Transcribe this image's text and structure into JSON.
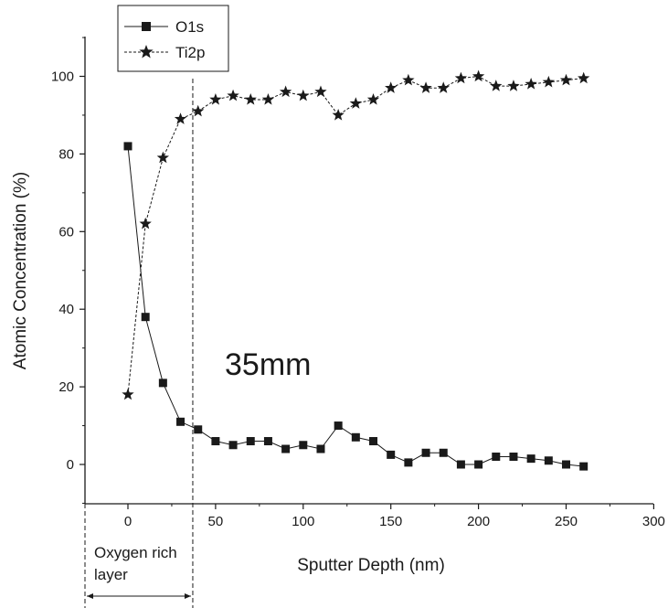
{
  "chart_data": {
    "type": "scatter",
    "xlabel": "Sputter Depth (nm)",
    "ylabel": "Atomic Concentration (%)",
    "xlim": [
      -25,
      300
    ],
    "ylim": [
      -10,
      110
    ],
    "x_ticks": [
      0,
      50,
      100,
      150,
      200,
      250,
      300
    ],
    "y_ticks": [
      0,
      20,
      40,
      60,
      80,
      100
    ],
    "grid": false,
    "legend_position": "top-left",
    "series": [
      {
        "name": "O1s",
        "marker": "square",
        "line_style": "solid",
        "color": "#1a1a1a",
        "x": [
          0,
          10,
          20,
          30,
          40,
          50,
          60,
          70,
          80,
          90,
          100,
          110,
          120,
          130,
          140,
          150,
          160,
          170,
          180,
          190,
          200,
          210,
          220,
          230,
          240,
          250,
          260
        ],
        "y": [
          82,
          38,
          21,
          11,
          9,
          6,
          5,
          6,
          6,
          4,
          5,
          4,
          10,
          7,
          6,
          2.5,
          0.5,
          3,
          3,
          0,
          0,
          2,
          2,
          1.5,
          1,
          0,
          -0.5
        ]
      },
      {
        "name": "Ti2p",
        "marker": "star",
        "line_style": "dashed",
        "color": "#1a1a1a",
        "x": [
          0,
          10,
          20,
          30,
          40,
          50,
          60,
          70,
          80,
          90,
          100,
          110,
          120,
          130,
          140,
          150,
          160,
          170,
          180,
          190,
          200,
          210,
          220,
          230,
          240,
          250,
          260
        ],
        "y": [
          18,
          62,
          79,
          89,
          91,
          94,
          95,
          94,
          94,
          96,
          95,
          96,
          90,
          93,
          94,
          97,
          99,
          97,
          97,
          99.5,
          100,
          97.5,
          97.5,
          98,
          98.5,
          99,
          99.5
        ]
      }
    ],
    "annotations": {
      "depth_text": "35mm",
      "layer_line1": "Oxygen rich",
      "layer_line2": "layer",
      "layer_boundary_x": 37,
      "layer_start_x": -25
    }
  }
}
